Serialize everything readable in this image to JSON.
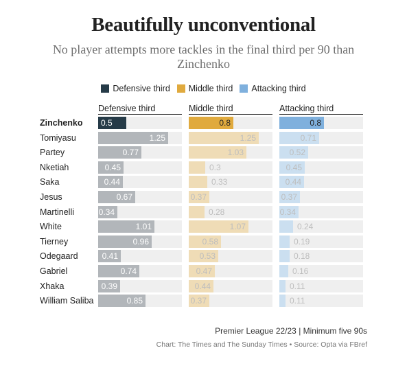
{
  "title": "Beautifully unconventional",
  "subtitle": "No player attempts more tackles in the final third per 90 than Zinchenko",
  "footer": {
    "note": "Premier League 22/23 | Minimum five 90s",
    "credit": "Chart: The Times and The Sunday Times • Source: Opta via FBref"
  },
  "colors": {
    "defensive": "#263b48",
    "middle": "#e0aa3e",
    "attacking": "#7fb0dd",
    "defensive_muted": "#b2b6ba",
    "middle_muted": "#efdcb6",
    "attacking_muted": "#cbdff0",
    "track": "#efefef"
  },
  "chart_data": {
    "type": "bar",
    "orientation": "horizontal",
    "legend": [
      "Defensive third",
      "Middle third",
      "Attacking third"
    ],
    "legend_position": "top-center",
    "highlight": "Zinchenko",
    "categories": [
      "Zinchenko",
      "Tomiyasu",
      "Partey",
      "Nketiah",
      "Saka",
      "Jesus",
      "Martinelli",
      "White",
      "Tierney",
      "Odegaard",
      "Gabriel",
      "Xhaka",
      "William Saliba"
    ],
    "xlim": [
      0,
      1.5
    ],
    "series": [
      {
        "name": "Defensive third",
        "values": [
          0.5,
          1.25,
          0.77,
          0.45,
          0.44,
          0.67,
          0.34,
          1.01,
          0.96,
          0.41,
          0.74,
          0.39,
          0.85
        ]
      },
      {
        "name": "Middle third",
        "values": [
          0.8,
          1.25,
          1.03,
          0.3,
          0.33,
          0.37,
          0.28,
          1.07,
          0.58,
          0.53,
          0.47,
          0.44,
          0.37
        ]
      },
      {
        "name": "Attacking third",
        "values": [
          0.8,
          0.71,
          0.52,
          0.45,
          0.44,
          0.37,
          0.34,
          0.24,
          0.19,
          0.18,
          0.16,
          0.11,
          0.11
        ]
      }
    ]
  }
}
